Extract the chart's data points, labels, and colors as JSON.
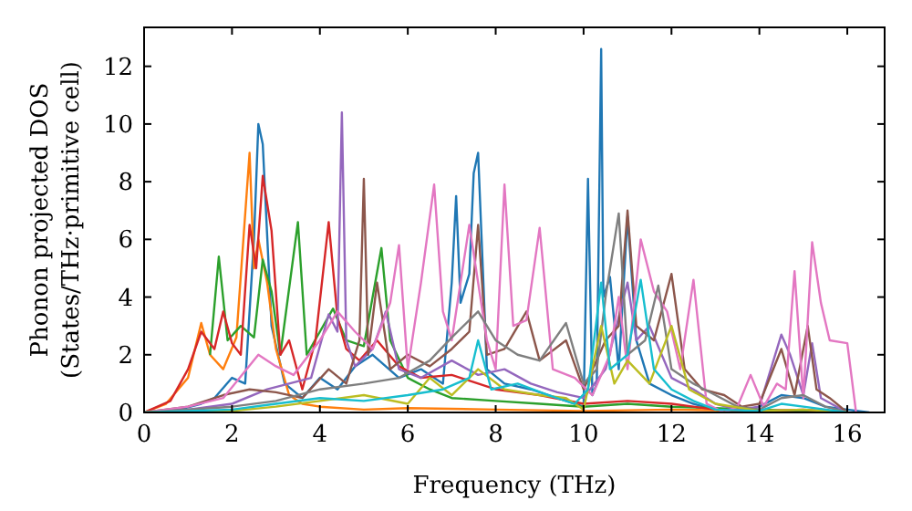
{
  "chart_data": {
    "type": "line",
    "xlabel": "Frequency (THz)",
    "ylabel": "Phonon projected DOS\n(States/THz·primitive cell)",
    "xlim": [
      0,
      16.85
    ],
    "ylim": [
      0,
      13.35
    ],
    "xticks": [
      0,
      2,
      4,
      6,
      8,
      10,
      12,
      14,
      16
    ],
    "yticks": [
      0,
      2,
      4,
      6,
      8,
      10,
      12
    ],
    "grid": false,
    "line_style": "solid",
    "marker": "none",
    "series": [
      {
        "color": "#1f77b4",
        "x": [
          0,
          0.8,
          1.3,
          1.6,
          2.0,
          2.3,
          2.5,
          2.6,
          2.7,
          2.9,
          3.2,
          3.6,
          4.0,
          4.4,
          4.8,
          5.2,
          5.8,
          6.3,
          6.8,
          7.0,
          7.1,
          7.2,
          7.4,
          7.5,
          7.6,
          7.8,
          8.2,
          8.8,
          9.4,
          10.0,
          10.1,
          10.2,
          10.3,
          10.4,
          10.45,
          10.6,
          10.8,
          11.0,
          11.2,
          11.5,
          12.0,
          12.5,
          13.0,
          13.5,
          14.0,
          14.5,
          15.0,
          15.5,
          16.0,
          16.5
        ],
        "values": [
          0,
          0.1,
          0.3,
          0.5,
          1.2,
          1.0,
          6.0,
          10.0,
          9.3,
          3.0,
          1.0,
          0.5,
          1.2,
          0.8,
          1.6,
          2.0,
          1.2,
          1.5,
          1.0,
          4.5,
          7.5,
          3.8,
          4.8,
          8.3,
          9.0,
          1.5,
          1.0,
          0.8,
          0.5,
          0.2,
          8.1,
          0.6,
          1.0,
          12.6,
          4.0,
          4.7,
          1.5,
          6.8,
          2.5,
          1.0,
          0.6,
          0.3,
          0.1,
          0,
          0.2,
          0.6,
          0.5,
          0.2,
          0.1,
          0
        ]
      },
      {
        "color": "#ff7f0e",
        "x": [
          0,
          0.5,
          1.0,
          1.3,
          1.5,
          1.8,
          2.1,
          2.4,
          2.5,
          2.6,
          2.8,
          3.0,
          3.3,
          3.6,
          4.0,
          5.0,
          6.0,
          8.0,
          10.0,
          12.0,
          14.0,
          16.0
        ],
        "values": [
          0,
          0.3,
          1.2,
          3.1,
          2.0,
          1.5,
          2.6,
          9.0,
          5.0,
          6.0,
          4.5,
          2.2,
          0.6,
          0.3,
          0.2,
          0.1,
          0.15,
          0.1,
          0.05,
          0.1,
          0.05,
          0
        ]
      },
      {
        "color": "#2ca02c",
        "x": [
          1.5,
          1.7,
          1.9,
          2.2,
          2.5,
          2.7,
          2.9,
          3.1,
          3.5,
          3.7,
          4.0,
          4.3,
          4.6,
          5.0,
          5.4,
          5.6,
          6.0,
          6.5,
          7.0,
          8.0,
          9.0,
          10.0,
          11.0,
          12.0,
          14.0,
          16.0
        ],
        "values": [
          2.0,
          5.4,
          2.5,
          3.0,
          2.6,
          5.3,
          4.2,
          2.0,
          6.6,
          2.0,
          2.8,
          3.6,
          2.5,
          2.3,
          5.7,
          2.5,
          1.2,
          0.8,
          0.5,
          0.4,
          0.3,
          0.2,
          0.3,
          0.2,
          0.1,
          0
        ]
      },
      {
        "color": "#d62728",
        "x": [
          0,
          0.6,
          1.0,
          1.3,
          1.6,
          1.8,
          2.0,
          2.2,
          2.4,
          2.55,
          2.7,
          2.9,
          3.1,
          3.3,
          3.6,
          3.9,
          4.2,
          4.4,
          4.6,
          4.9,
          5.3,
          5.8,
          6.3,
          7.0,
          8.0,
          9.0,
          10.0,
          11.0,
          12.0,
          13.0,
          14.0,
          15.0,
          16.0
        ],
        "values": [
          0,
          0.4,
          1.5,
          2.8,
          2.2,
          3.5,
          2.4,
          2.0,
          6.5,
          5.0,
          8.2,
          6.3,
          2.0,
          2.5,
          0.8,
          2.5,
          6.6,
          3.3,
          2.2,
          1.8,
          2.5,
          1.6,
          1.2,
          1.3,
          0.8,
          0.6,
          0.3,
          0.4,
          0.3,
          0.1,
          0.05,
          0.1,
          0
        ]
      },
      {
        "color": "#9467bd",
        "x": [
          0,
          1.0,
          2.0,
          2.8,
          3.3,
          3.8,
          4.2,
          4.4,
          4.5,
          4.6,
          4.8,
          5.2,
          5.5,
          5.8,
          6.3,
          7.0,
          7.6,
          8.2,
          8.8,
          9.4,
          10.0,
          10.5,
          11.0,
          11.2,
          11.5,
          12.0,
          12.5,
          13.0,
          13.5,
          14.0,
          14.5,
          14.7,
          15.0,
          15.2,
          15.4,
          16.0
        ],
        "values": [
          0,
          0.1,
          0.3,
          0.8,
          1.0,
          1.2,
          3.4,
          2.8,
          10.4,
          2.5,
          1.6,
          2.2,
          3.5,
          1.5,
          1.2,
          1.8,
          1.3,
          1.5,
          1.0,
          0.7,
          0.5,
          1.5,
          4.5,
          2.5,
          3.0,
          1.2,
          0.8,
          0.3,
          0.1,
          0.2,
          2.7,
          2.0,
          0.6,
          2.4,
          0.5,
          0
        ]
      },
      {
        "color": "#8c564b",
        "x": [
          0,
          1.0,
          1.8,
          2.4,
          3.0,
          3.6,
          4.2,
          4.6,
          4.9,
          5.0,
          5.1,
          5.3,
          5.6,
          6.0,
          6.5,
          7.0,
          7.4,
          7.6,
          7.8,
          8.2,
          8.7,
          9.0,
          9.6,
          10.0,
          10.5,
          10.8,
          11.0,
          11.2,
          11.6,
          12.0,
          12.3,
          12.7,
          13.2,
          13.6,
          14.0,
          14.5,
          14.8,
          15.1,
          15.3,
          15.6,
          16.0
        ],
        "values": [
          0,
          0.2,
          0.6,
          0.8,
          0.7,
          0.5,
          1.5,
          1.0,
          2.5,
          8.1,
          2.0,
          4.5,
          1.5,
          2.0,
          1.6,
          2.2,
          2.8,
          6.5,
          2.0,
          2.2,
          3.5,
          1.8,
          2.5,
          0.8,
          2.5,
          3.0,
          7.0,
          3.0,
          2.5,
          4.8,
          1.5,
          0.8,
          0.6,
          0.2,
          0.3,
          2.2,
          0.6,
          3.0,
          0.8,
          0.5,
          0
        ]
      },
      {
        "color": "#e377c2",
        "x": [
          0,
          1.0,
          1.8,
          2.6,
          3.0,
          3.4,
          4.0,
          4.4,
          4.8,
          5.2,
          5.6,
          5.8,
          6.0,
          6.3,
          6.6,
          6.8,
          7.0,
          7.4,
          7.8,
          8.0,
          8.2,
          8.4,
          8.7,
          9.0,
          9.3,
          9.8,
          10.2,
          10.6,
          10.8,
          11.0,
          11.3,
          11.6,
          11.9,
          12.2,
          12.5,
          12.8,
          13.2,
          13.5,
          13.8,
          14.1,
          14.4,
          14.6,
          14.8,
          15.0,
          15.2,
          15.4,
          15.6,
          16.0,
          16.2
        ],
        "values": [
          0,
          0.2,
          0.5,
          2.0,
          1.6,
          1.3,
          2.5,
          3.5,
          2.8,
          2.2,
          3.8,
          5.8,
          1.5,
          4.5,
          7.9,
          3.5,
          2.5,
          6.5,
          2.5,
          1.5,
          7.9,
          3.0,
          3.2,
          6.4,
          1.5,
          1.2,
          0.6,
          2.0,
          4.0,
          1.5,
          6.0,
          4.2,
          3.5,
          1.5,
          4.6,
          0.3,
          0,
          0.2,
          1.3,
          0.2,
          1.0,
          0.8,
          4.9,
          0.5,
          5.9,
          3.8,
          2.5,
          2.4,
          0
        ]
      },
      {
        "color": "#7f7f7f",
        "x": [
          0,
          2.0,
          3.0,
          4.0,
          5.0,
          5.8,
          6.5,
          7.0,
          7.6,
          8.0,
          8.5,
          9.0,
          9.6,
          10.0,
          10.3,
          10.5,
          10.8,
          11.0,
          11.4,
          11.7,
          12.0,
          12.5,
          13.0,
          13.5,
          14.0,
          14.5,
          15.0,
          15.5,
          16.0
        ],
        "values": [
          0,
          0.2,
          0.4,
          0.8,
          1.0,
          1.2,
          1.8,
          2.6,
          3.5,
          2.5,
          2.0,
          1.8,
          3.1,
          1.0,
          1.5,
          4.0,
          6.9,
          2.0,
          2.5,
          4.4,
          1.5,
          1.0,
          0.6,
          0.2,
          0.1,
          0.5,
          0.6,
          0.2,
          0
        ]
      },
      {
        "color": "#bcbd22",
        "x": [
          0,
          2.0,
          3.0,
          4.0,
          5.0,
          6.0,
          6.5,
          7.0,
          7.6,
          8.2,
          9.0,
          9.6,
          10.0,
          10.4,
          10.7,
          11.0,
          11.5,
          12.0,
          12.4,
          13.0,
          14.0,
          15.0,
          16.0
        ],
        "values": [
          0,
          0.05,
          0.2,
          0.4,
          0.6,
          0.3,
          1.2,
          0.6,
          1.5,
          0.8,
          0.6,
          0.5,
          0.1,
          3.0,
          1.0,
          1.8,
          1.0,
          3.0,
          0.8,
          0.3,
          0.05,
          0.1,
          0
        ]
      },
      {
        "color": "#17becf",
        "x": [
          0,
          2.0,
          3.0,
          4.0,
          5.0,
          6.0,
          6.8,
          7.4,
          7.6,
          7.9,
          8.5,
          9.2,
          9.8,
          10.1,
          10.4,
          10.6,
          11.0,
          11.3,
          11.6,
          12.0,
          12.5,
          13.0,
          14.0,
          14.5,
          15.0,
          16.0
        ],
        "values": [
          0,
          0.1,
          0.3,
          0.5,
          0.4,
          0.6,
          0.8,
          1.2,
          2.5,
          0.8,
          1.0,
          0.6,
          0.3,
          0.8,
          4.5,
          1.5,
          2.0,
          4.6,
          1.5,
          0.8,
          0.4,
          0.1,
          0.05,
          0.3,
          0.2,
          0
        ]
      }
    ]
  }
}
